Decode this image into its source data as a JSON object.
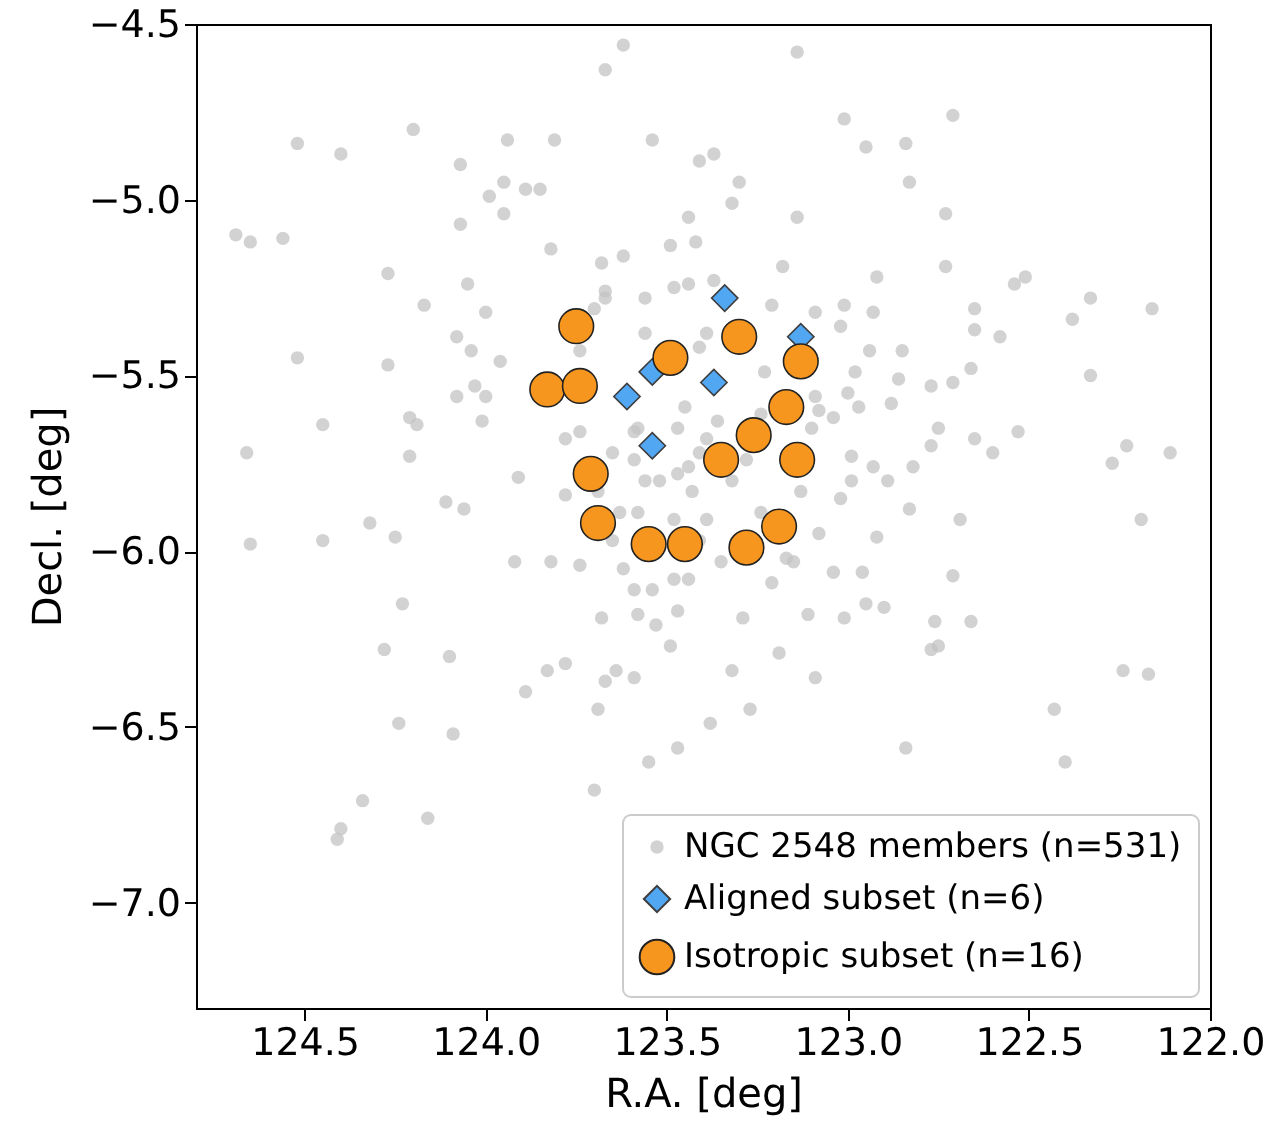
{
  "chart_data": {
    "type": "scatter",
    "xlabel": "R.A. [deg]",
    "ylabel": "Decl. [deg]",
    "xlim": [
      124.8,
      122.0
    ],
    "ylim": [
      -7.3,
      -4.5
    ],
    "xticks": [
      {
        "value": 124.5,
        "label": "124.5"
      },
      {
        "value": 124.0,
        "label": "124.0"
      },
      {
        "value": 123.5,
        "label": "123.5"
      },
      {
        "value": 123.0,
        "label": "123.0"
      },
      {
        "value": 122.5,
        "label": "122.5"
      },
      {
        "value": 122.0,
        "label": "122.0"
      }
    ],
    "yticks": [
      {
        "value": -7.0,
        "label": "−7.0"
      },
      {
        "value": -6.5,
        "label": "−6.5"
      },
      {
        "value": -6.0,
        "label": "−6.0"
      },
      {
        "value": -5.5,
        "label": "−5.5"
      },
      {
        "value": -5.0,
        "label": "−5.0"
      },
      {
        "value": -4.5,
        "label": "−4.5"
      }
    ],
    "grid": false,
    "legend": "bottom right",
    "series": [
      {
        "name": "NGC 2548 members (n=531)",
        "color": "#c4c4c4",
        "marker": "circle",
        "x": [
          123.62,
          123.67,
          124.2,
          124.52,
          124.4,
          123.94,
          123.81,
          123.54,
          124.07,
          123.95,
          123.99,
          123.89,
          123.85,
          123.95,
          124.07,
          124.69,
          124.65,
          124.56,
          124.27,
          124.17,
          124.05,
          124.0,
          124.08,
          124.04,
          123.96,
          124.52,
          124.27,
          123.82,
          123.68,
          123.62,
          123.44,
          123.41,
          123.37,
          123.49,
          123.42,
          123.32,
          123.48,
          123.44,
          123.56,
          123.7,
          123.67,
          123.74,
          124.03,
          124.08,
          124.0,
          124.01,
          124.21,
          124.19,
          124.45,
          124.66,
          124.21,
          124.11,
          124.06,
          124.32,
          124.45,
          124.65,
          124.25,
          123.91,
          123.78,
          123.78,
          123.74,
          123.44,
          123.39,
          123.45,
          123.59,
          123.56,
          123.48,
          123.63,
          123.39,
          123.3,
          123.14,
          123.01,
          122.71,
          122.95,
          122.84,
          122.83,
          123.14,
          122.73,
          122.73,
          123.18,
          122.92,
          122.54,
          122.51,
          122.33,
          122.16,
          122.38,
          122.65,
          122.65,
          122.58,
          123.01,
          122.93,
          123.09,
          122.94,
          122.85,
          122.66,
          122.33,
          122.77,
          122.71,
          122.86,
          122.98,
          122.88,
          122.97,
          122.75,
          122.53,
          122.65,
          122.6,
          122.23,
          122.27,
          122.11,
          122.82,
          122.77,
          122.99,
          122.93,
          122.89,
          123.02,
          122.83,
          122.69,
          122.19,
          123.08,
          122.92,
          123.08,
          123.04,
          123.09,
          123.04,
          122.96,
          122.71,
          122.95,
          122.9,
          123.11,
          123.01,
          122.76,
          122.66,
          123.19,
          122.77,
          122.75,
          123.32,
          123.09,
          122.24,
          122.17,
          123.27,
          123.38,
          122.43,
          122.84,
          122.4,
          123.15,
          123.21,
          123.29,
          124.23,
          124.28,
          124.1,
          124.24,
          124.09,
          124.34,
          124.4,
          124.41,
          124.16,
          123.89,
          123.83,
          123.78,
          123.69,
          123.67,
          123.64,
          123.59,
          123.68,
          123.49,
          123.47,
          123.53,
          123.55,
          123.47,
          123.7,
          123.92,
          123.82,
          123.74,
          123.62,
          123.59,
          123.54,
          123.48,
          123.58,
          123.44,
          123.35,
          123.41,
          123.47,
          123.43,
          123.52,
          123.59,
          123.32,
          123.28,
          123.36,
          123.24,
          123.47,
          123.58,
          123.65,
          123.69,
          123.58,
          123.39,
          123.24,
          123.13,
          123.1,
          123.23,
          123.41,
          123.56,
          123.67,
          123.21,
          123.37,
          123.02,
          123.0,
          122.99,
          123.41,
          123.17,
          123.65
        ],
        "values": [
          -4.56,
          -4.63,
          -4.8,
          -4.84,
          -4.87,
          -4.83,
          -4.83,
          -4.83,
          -4.9,
          -4.95,
          -4.99,
          -4.97,
          -4.97,
          -5.04,
          -5.07,
          -5.1,
          -5.12,
          -5.11,
          -5.21,
          -5.3,
          -5.24,
          -5.32,
          -5.39,
          -5.43,
          -5.46,
          -5.45,
          -5.47,
          -5.14,
          -5.18,
          -5.16,
          -5.05,
          -4.89,
          -4.87,
          -5.13,
          -5.12,
          -5.01,
          -5.25,
          -5.24,
          -5.28,
          -5.31,
          -5.26,
          -5.43,
          -5.53,
          -5.56,
          -5.56,
          -5.63,
          -5.62,
          -5.64,
          -5.64,
          -5.72,
          -5.73,
          -5.86,
          -5.88,
          -5.92,
          -5.97,
          -5.98,
          -5.96,
          -5.79,
          -5.84,
          -5.68,
          -5.66,
          -5.76,
          -5.68,
          -5.59,
          -5.66,
          -5.8,
          -5.91,
          -5.89,
          -5.38,
          -4.95,
          -4.58,
          -4.77,
          -4.76,
          -4.85,
          -4.84,
          -4.95,
          -5.05,
          -5.04,
          -5.19,
          -5.19,
          -5.22,
          -5.24,
          -5.22,
          -5.28,
          -5.31,
          -5.34,
          -5.31,
          -5.37,
          -5.39,
          -5.3,
          -5.32,
          -5.32,
          -5.43,
          -5.43,
          -5.48,
          -5.5,
          -5.53,
          -5.52,
          -5.51,
          -5.49,
          -5.58,
          -5.59,
          -5.65,
          -5.66,
          -5.68,
          -5.72,
          -5.7,
          -5.75,
          -5.72,
          -5.76,
          -5.7,
          -5.73,
          -5.76,
          -5.8,
          -5.85,
          -5.88,
          -5.91,
          -5.91,
          -5.95,
          -5.96,
          -5.6,
          -5.62,
          -5.56,
          -6.06,
          -6.06,
          -6.07,
          -6.15,
          -6.16,
          -6.18,
          -6.19,
          -6.2,
          -6.2,
          -6.29,
          -6.28,
          -6.27,
          -6.34,
          -6.36,
          -6.34,
          -6.35,
          -6.45,
          -6.49,
          -6.45,
          -6.56,
          -6.6,
          -6.03,
          -6.09,
          -6.19,
          -6.15,
          -6.28,
          -6.3,
          -6.49,
          -6.52,
          -6.71,
          -6.79,
          -6.82,
          -6.76,
          -6.4,
          -6.34,
          -6.32,
          -6.45,
          -6.37,
          -6.34,
          -6.36,
          -6.19,
          -6.27,
          -6.17,
          -6.21,
          -6.6,
          -6.56,
          -6.68,
          -6.03,
          -6.03,
          -6.04,
          -6.05,
          -6.11,
          -6.11,
          -6.08,
          -6.18,
          -6.08,
          -6.03,
          -5.72,
          -5.78,
          -5.83,
          -5.8,
          -5.74,
          -5.8,
          -5.74,
          -5.63,
          -5.61,
          -5.65,
          -5.65,
          -5.72,
          -5.83,
          -5.89,
          -5.91,
          -5.89,
          -5.83,
          -5.65,
          -5.49,
          -5.42,
          -5.38,
          -5.28,
          -5.3,
          -5.23,
          -5.36,
          -5.55,
          -5.8,
          -5.97,
          -6.02,
          -5.97
        ]
      },
      {
        "name": "Aligned subset (n=6)",
        "color": "#3a9bf2",
        "marker": "diamond",
        "x": [
          123.34,
          123.13,
          123.54,
          123.37,
          123.61,
          123.54
        ],
        "values": [
          -5.28,
          -5.39,
          -5.49,
          -5.52,
          -5.56,
          -5.7
        ]
      },
      {
        "name": "Isotropic subset (n=16)",
        "color": "#f7961e",
        "marker": "circle",
        "x": [
          123.75,
          123.3,
          123.49,
          123.13,
          123.83,
          123.74,
          123.17,
          123.26,
          123.35,
          123.14,
          123.71,
          123.69,
          123.19,
          123.55,
          123.45,
          123.28
        ],
        "values": [
          -5.36,
          -5.39,
          -5.45,
          -5.46,
          -5.54,
          -5.53,
          -5.59,
          -5.67,
          -5.74,
          -5.74,
          -5.78,
          -5.92,
          -5.93,
          -5.98,
          -5.98,
          -5.99
        ]
      }
    ]
  }
}
